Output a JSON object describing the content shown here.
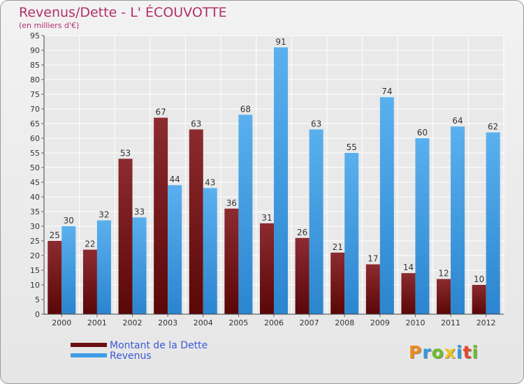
{
  "chart_data": {
    "type": "bar",
    "title": "Revenus/Dette - L' ÉCOUVOTTE",
    "subtitle": "(en milliers d'€)",
    "categories": [
      "2000",
      "2001",
      "2002",
      "2003",
      "2004",
      "2005",
      "2006",
      "2007",
      "2008",
      "2009",
      "2010",
      "2011",
      "2012"
    ],
    "series": [
      {
        "name": "Montant de la Dette",
        "color": "#7a1e22",
        "values": [
          25,
          22,
          53,
          67,
          63,
          36,
          31,
          26,
          21,
          17,
          14,
          12,
          10
        ]
      },
      {
        "name": "Revenus",
        "color": "#4aa3e6",
        "values": [
          30,
          32,
          33,
          44,
          43,
          68,
          91,
          63,
          55,
          74,
          60,
          64,
          62
        ]
      }
    ],
    "ylim": [
      0,
      95
    ],
    "yticks": [
      0,
      5,
      10,
      15,
      20,
      25,
      30,
      35,
      40,
      45,
      50,
      55,
      60,
      65,
      70,
      75,
      80,
      85,
      90,
      95
    ],
    "grid": true,
    "legend": "bottom-left"
  },
  "legend": {
    "dette_label": "Montant de la Dette",
    "revenus_label": "Revenus",
    "dette_color": "#6b0f12",
    "revenus_color": "#3f9ee8"
  },
  "logo": {
    "letters": [
      "P",
      "r",
      "o",
      "x",
      "i",
      "t",
      "i"
    ],
    "colors": [
      "#f08a1c",
      "#2f9be0",
      "#6cbf2a",
      "#f0c21c",
      "#2f9be0",
      "#e8452c",
      "#6cbf2a"
    ]
  }
}
